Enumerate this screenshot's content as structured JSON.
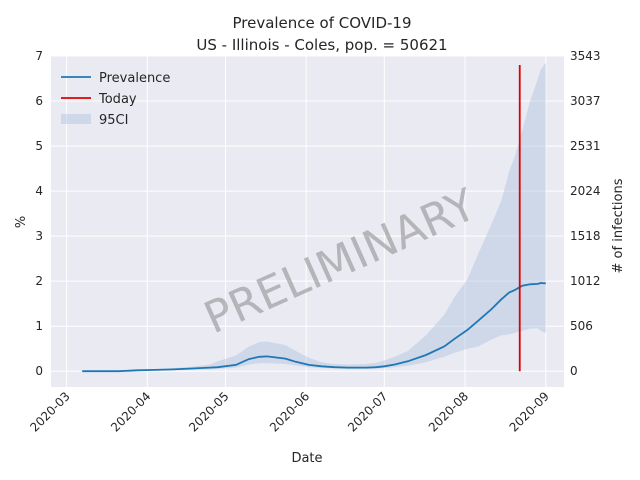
{
  "chart_data": {
    "type": "line",
    "title": "Prevalence of COVID-19",
    "subtitle": "US - Illinois - Coles, pop. = 50621",
    "xlabel": "Date",
    "ylabel": "%",
    "y2label": "# of infections",
    "watermark": "PRELIMINARY",
    "xlim": [
      "2020-02-24",
      "2020-09-08"
    ],
    "ylim": [
      -0.35,
      7.0
    ],
    "x_ticks": [
      "2020-03-01",
      "2020-04-01",
      "2020-05-01",
      "2020-06-01",
      "2020-07-01",
      "2020-08-01",
      "2020-09-01"
    ],
    "x_tick_labels": [
      "2020-03",
      "2020-04",
      "2020-05",
      "2020-06",
      "2020-07",
      "2020-08",
      "2020-09"
    ],
    "y_ticks": [
      0,
      1,
      2,
      3,
      4,
      5,
      6,
      7
    ],
    "y_tick_labels": [
      "0",
      "1",
      "2",
      "3",
      "4",
      "5",
      "6",
      "7"
    ],
    "y2_ticks": [
      0,
      1,
      2,
      3,
      4,
      5,
      6,
      7
    ],
    "y2_tick_labels": [
      "0",
      "506",
      "1012",
      "1518",
      "2024",
      "2531",
      "3037",
      "3543"
    ],
    "grid": true,
    "legend_position": "top-left",
    "legend": [
      "Prevalence",
      "Today",
      "95CI"
    ],
    "today": {
      "date": "2020-08-22",
      "y_from": 0,
      "y_to": 6.8
    },
    "dates": [
      "2020-03-07",
      "2020-03-14",
      "2020-03-21",
      "2020-03-28",
      "2020-04-04",
      "2020-04-11",
      "2020-04-18",
      "2020-04-25",
      "2020-04-28",
      "2020-05-05",
      "2020-05-10",
      "2020-05-14",
      "2020-05-17",
      "2020-05-24",
      "2020-05-28",
      "2020-06-02",
      "2020-06-07",
      "2020-06-12",
      "2020-06-17",
      "2020-06-24",
      "2020-06-28",
      "2020-07-01",
      "2020-07-05",
      "2020-07-10",
      "2020-07-17",
      "2020-07-24",
      "2020-07-28",
      "2020-08-02",
      "2020-08-06",
      "2020-08-11",
      "2020-08-15",
      "2020-08-18",
      "2020-08-20",
      "2020-08-23",
      "2020-08-26",
      "2020-08-29",
      "2020-08-30",
      "2020-09-01"
    ],
    "series": [
      {
        "name": "Prevalence",
        "color": "#1f77b4",
        "values": [
          0,
          0,
          0,
          0.02,
          0.03,
          0.04,
          0.06,
          0.08,
          0.09,
          0.14,
          0.27,
          0.32,
          0.33,
          0.28,
          0.21,
          0.14,
          0.11,
          0.09,
          0.08,
          0.08,
          0.09,
          0.11,
          0.15,
          0.22,
          0.36,
          0.55,
          0.72,
          0.92,
          1.12,
          1.37,
          1.6,
          1.75,
          1.8,
          1.9,
          1.93,
          1.94,
          1.96,
          1.95
        ]
      },
      {
        "name": "95CI lower",
        "color": "#b0c4de",
        "values": [
          0,
          0,
          0,
          0.01,
          0.01,
          0.02,
          0.03,
          0.04,
          0.05,
          0.08,
          0.15,
          0.18,
          0.18,
          0.16,
          0.13,
          0.09,
          0.07,
          0.06,
          0.05,
          0.05,
          0.06,
          0.07,
          0.09,
          0.12,
          0.2,
          0.32,
          0.41,
          0.5,
          0.55,
          0.7,
          0.8,
          0.82,
          0.85,
          0.9,
          0.95,
          0.95,
          0.9,
          0.85
        ]
      },
      {
        "name": "95CI upper",
        "color": "#b0c4de",
        "values": [
          0,
          0,
          0,
          0.03,
          0.05,
          0.07,
          0.1,
          0.15,
          0.22,
          0.35,
          0.55,
          0.65,
          0.66,
          0.58,
          0.45,
          0.3,
          0.2,
          0.16,
          0.15,
          0.16,
          0.19,
          0.24,
          0.32,
          0.45,
          0.8,
          1.25,
          1.65,
          2.05,
          2.6,
          3.25,
          3.8,
          4.45,
          4.75,
          5.35,
          6.0,
          6.5,
          6.7,
          6.85
        ]
      }
    ],
    "colors": {
      "background": "#eaeaf2",
      "grid": "#ffffff",
      "today": "#e00000",
      "watermark": "#808080"
    }
  }
}
